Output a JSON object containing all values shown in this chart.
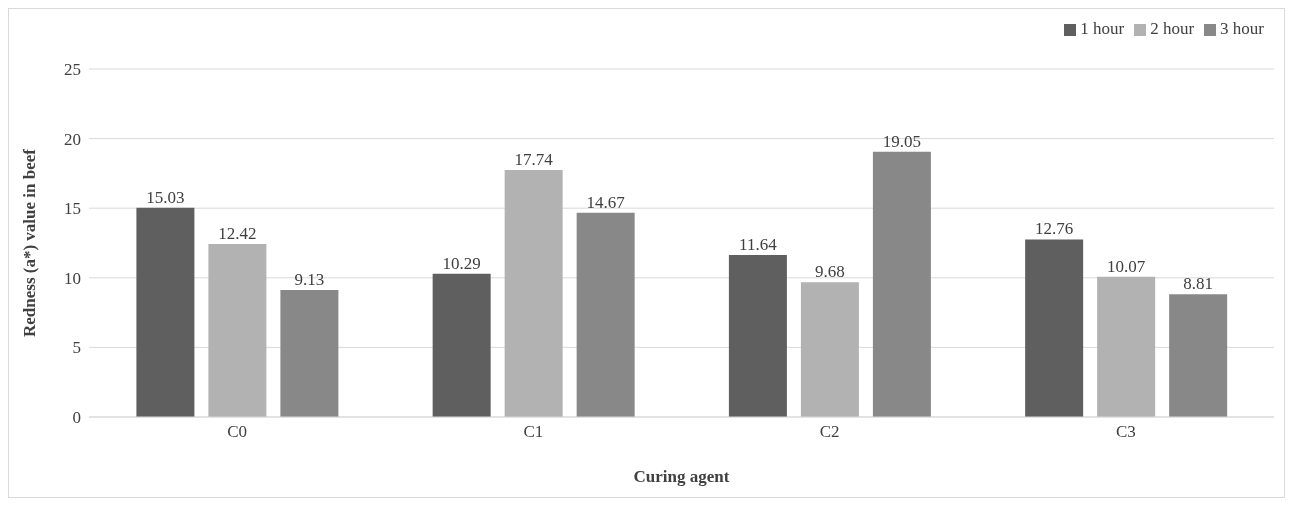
{
  "chart_data": {
    "type": "bar",
    "xlabel": "Curing agent",
    "ylabel": "Redness (a*) value in beef",
    "categories": [
      "C0",
      "C1",
      "C2",
      "C3"
    ],
    "series": [
      {
        "name": "1 hour",
        "color": "#5f5f5f",
        "values": [
          15.03,
          10.29,
          11.64,
          12.76
        ]
      },
      {
        "name": "2 hour",
        "color": "#b2b2b2",
        "values": [
          12.42,
          17.74,
          9.68,
          10.07
        ]
      },
      {
        "name": "3 hour",
        "color": "#888888",
        "values": [
          9.13,
          14.67,
          19.05,
          8.81
        ]
      }
    ],
    "ylim": [
      0,
      25
    ],
    "yticks": [
      0,
      5,
      10,
      15,
      20,
      25
    ],
    "grid": "y",
    "legend": "top right",
    "data_labels": true
  }
}
